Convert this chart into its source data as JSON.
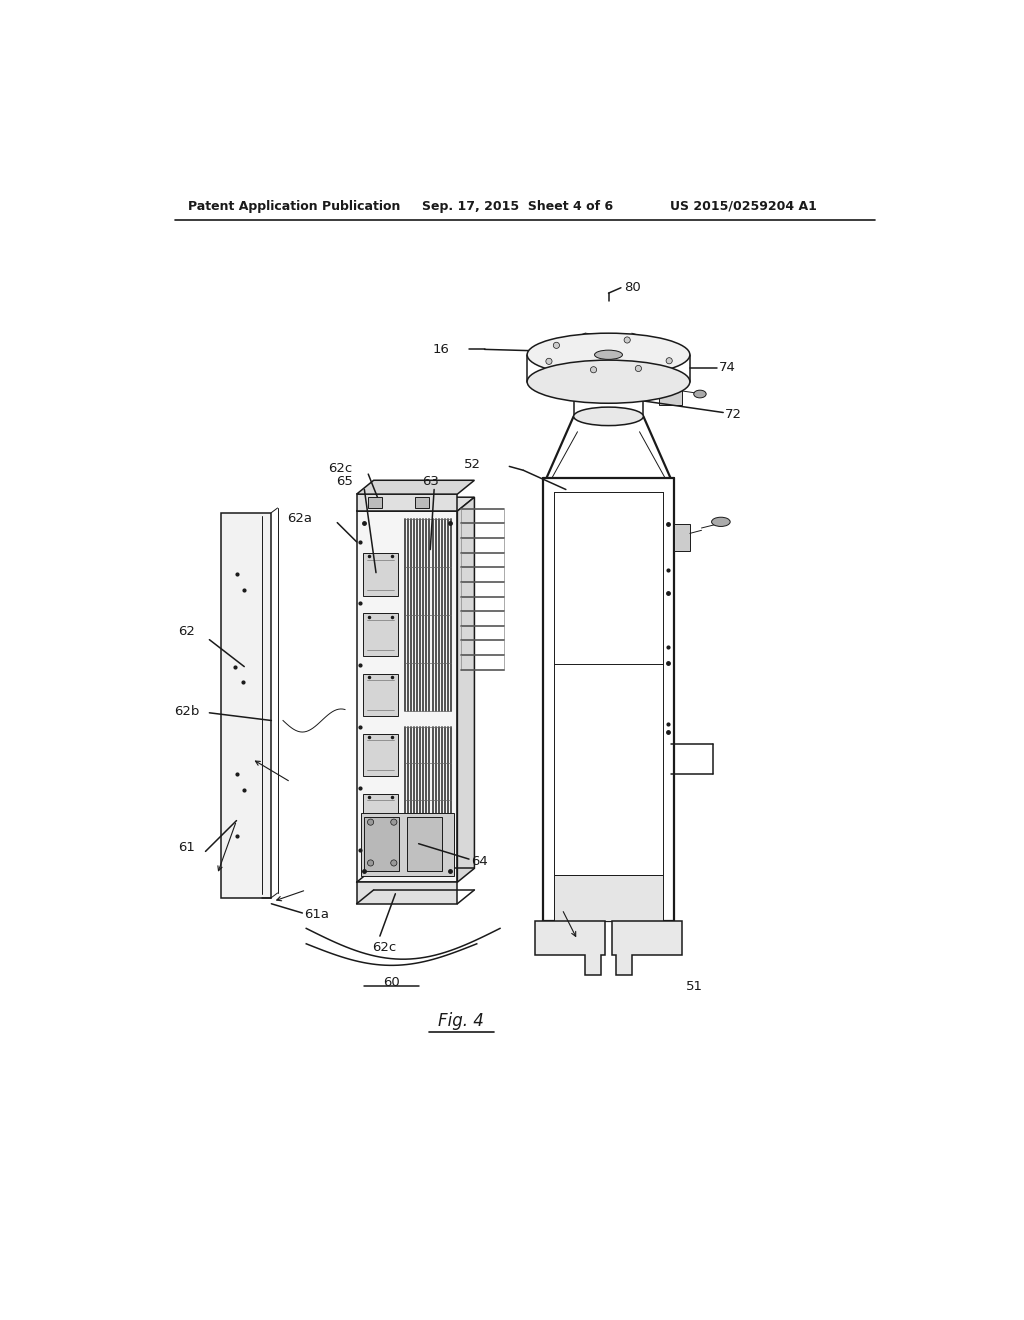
{
  "bg_color": "#ffffff",
  "line_color": "#1a1a1a",
  "header_left": "Patent Application Publication",
  "header_mid": "Sep. 17, 2015  Sheet 4 of 6",
  "header_right": "US 2015/0259204 A1",
  "fig_caption": "Fig. 4",
  "fig_number": "60",
  "label_fontsize": 9.5,
  "header_fontsize": 9
}
